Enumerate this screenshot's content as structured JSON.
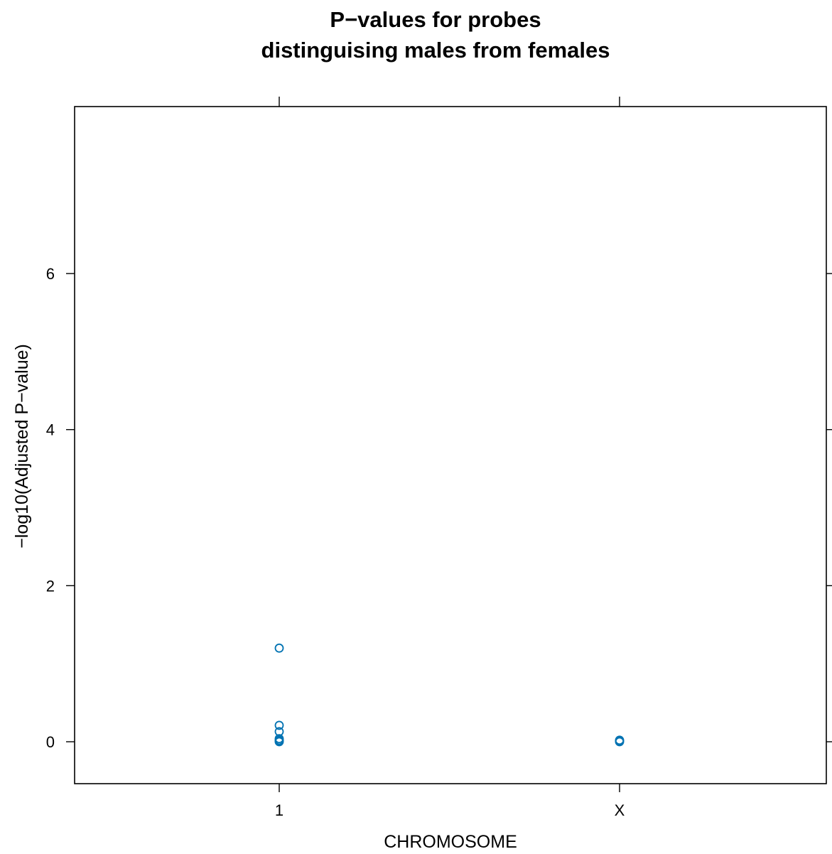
{
  "chart_data": {
    "type": "scatter",
    "title": [
      "P−values for probes",
      "distinguising males from females"
    ],
    "xlabel": "CHROMOSOME",
    "ylabel": "−log10(Adjusted P−value)",
    "categories": [
      "1",
      "X"
    ],
    "ylim": [
      -0.5,
      8
    ],
    "y_ticks": [
      0,
      2,
      4,
      6
    ],
    "grid": false,
    "point_color": "#0072B2",
    "series": [
      {
        "points": [
          {
            "x": "1",
            "y": 1.2
          },
          {
            "x": "1",
            "y": 0.21
          },
          {
            "x": "1",
            "y": 0.13
          },
          {
            "x": "1",
            "y": 0.04
          },
          {
            "x": "1",
            "y": 0.02
          },
          {
            "x": "1",
            "y": 0.01
          },
          {
            "x": "1",
            "y": 0.0
          },
          {
            "x": "X",
            "y": 0.02
          },
          {
            "x": "X",
            "y": 0.01
          },
          {
            "x": "X",
            "y": 0.0
          }
        ]
      }
    ]
  }
}
